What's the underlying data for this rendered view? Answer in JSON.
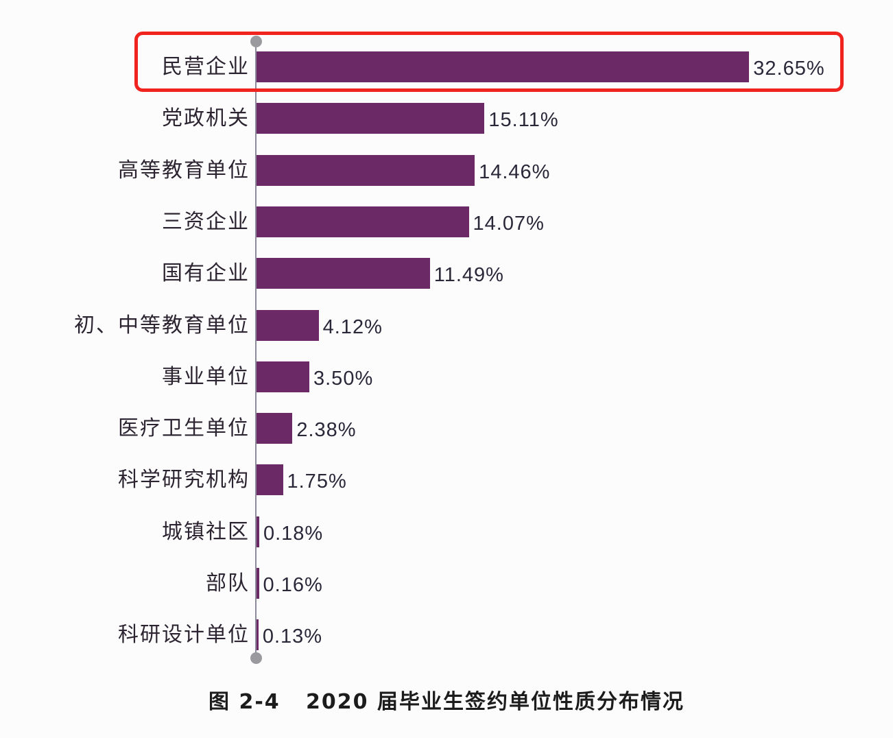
{
  "chart_data": {
    "type": "bar",
    "orientation": "horizontal",
    "title": "图 2-4   2020 届毕业生签约单位性质分布情况",
    "xlabel": "",
    "ylabel": "",
    "unit": "%",
    "bar_color": "#6b2965",
    "highlight_color": "#f0231f",
    "highlighted_category": "民营企业",
    "grid": false,
    "legend": null,
    "categories": [
      "民营企业",
      "党政机关",
      "高等教育单位",
      "三资企业",
      "国有企业",
      "初、中等教育单位",
      "事业单位",
      "医疗卫生单位",
      "科学研究机构",
      "城镇社区",
      "部队",
      "科研设计单位"
    ],
    "values": [
      32.65,
      15.11,
      14.46,
      14.07,
      11.49,
      4.12,
      3.5,
      2.38,
      1.75,
      0.18,
      0.16,
      0.13
    ],
    "labels": [
      "32.65%",
      "15.11%",
      "14.46%",
      "14.07%",
      "11.49%",
      "4.12%",
      "3.50%",
      "2.38%",
      "1.75%",
      "0.18%",
      "0.16%",
      "0.13%"
    ]
  },
  "caption": {
    "text": "图 2-4   2020 届毕业生签约单位性质分布情况"
  }
}
